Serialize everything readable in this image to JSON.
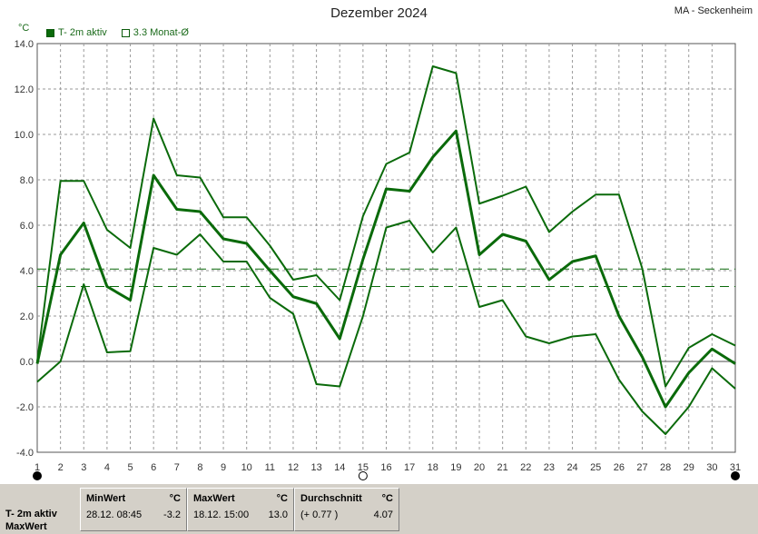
{
  "header": {
    "title": "Dezember 2024",
    "station": "MA - Seckenheim",
    "unit": "°C"
  },
  "legend": {
    "active_label": "T- 2m aktiv",
    "avg_label": "3.3 Monat-Ø"
  },
  "colors": {
    "series": "#0a6a0a",
    "grid": "#9a9a9a",
    "zero_line": "#888888",
    "dashed_ref": "#0a6a0a",
    "panel_bg": "#d4d0c8"
  },
  "chart_data": {
    "type": "line",
    "title": "Dezember 2024",
    "xlabel": "",
    "ylabel": "°C",
    "xlim": [
      1,
      31
    ],
    "ylim": [
      -4,
      14
    ],
    "yticks": [
      -4.0,
      -2.0,
      0.0,
      2.0,
      4.0,
      6.0,
      8.0,
      10.0,
      12.0,
      14.0
    ],
    "ytick_labels": [
      "-4.0",
      "-2.0",
      "0.0",
      "2.0",
      "4.0",
      "6.0",
      "8.0",
      "10.0",
      "12.0",
      "14.0"
    ],
    "x": [
      1,
      2,
      3,
      4,
      5,
      6,
      7,
      8,
      9,
      10,
      11,
      12,
      13,
      14,
      15,
      16,
      17,
      18,
      19,
      20,
      21,
      22,
      23,
      24,
      25,
      26,
      27,
      28,
      29,
      30,
      31
    ],
    "xtick_labels": [
      "1",
      "2",
      "3",
      "4",
      "5",
      "6",
      "7",
      "8",
      "9",
      "10",
      "11",
      "12",
      "13",
      "14",
      "15",
      "16",
      "17",
      "18",
      "19",
      "20",
      "21",
      "22",
      "23",
      "24",
      "25",
      "26",
      "27",
      "28",
      "29",
      "30",
      "31"
    ],
    "grid": true,
    "series": [
      {
        "role": "max",
        "width": 2,
        "values": [
          0.0,
          7.95,
          7.95,
          5.8,
          5.0,
          10.7,
          8.2,
          8.1,
          6.35,
          6.35,
          5.1,
          3.6,
          3.8,
          2.7,
          6.4,
          8.7,
          9.2,
          13.0,
          12.7,
          6.95,
          7.3,
          7.7,
          5.7,
          6.6,
          7.35,
          7.35,
          4.1,
          -1.1,
          0.6,
          1.2,
          0.7
        ]
      },
      {
        "role": "mean",
        "width": 3,
        "values": [
          -0.1,
          4.7,
          6.1,
          3.3,
          2.7,
          8.2,
          6.7,
          6.6,
          5.4,
          5.2,
          4.0,
          2.85,
          2.55,
          1.0,
          4.5,
          7.6,
          7.5,
          9.0,
          10.15,
          4.7,
          5.6,
          5.3,
          3.6,
          4.4,
          4.65,
          2.0,
          0.2,
          -2.0,
          -0.5,
          0.55,
          -0.1
        ]
      },
      {
        "role": "min",
        "width": 2,
        "values": [
          -0.9,
          0.0,
          3.4,
          0.4,
          0.45,
          5.0,
          4.7,
          5.6,
          4.4,
          4.4,
          2.8,
          2.1,
          -1.0,
          -1.1,
          2.0,
          5.9,
          6.2,
          4.8,
          5.9,
          2.4,
          2.7,
          1.1,
          0.8,
          1.1,
          1.2,
          -0.8,
          -2.2,
          -3.2,
          -2.0,
          -0.3,
          -1.2
        ]
      }
    ],
    "reference_lines": [
      4.07,
      3.3
    ],
    "moon_markers": [
      {
        "day": 1,
        "phase": "new"
      },
      {
        "day": 15,
        "phase": "full"
      },
      {
        "day": 31,
        "phase": "new"
      }
    ]
  },
  "stats": {
    "row_label_1": "T- 2m aktiv",
    "row_label_2": "MaxWert",
    "min": {
      "head": "MinWert",
      "unit": "°C",
      "when": "28.12.  08:45",
      "value": "-3.2"
    },
    "max": {
      "head": "MaxWert",
      "unit": "°C",
      "when": "18.12.  15:00",
      "value": "13.0"
    },
    "avg": {
      "head": "Durchschnitt",
      "unit": "°C",
      "diff": "(+ 0.77 )",
      "value": "4.07"
    }
  }
}
